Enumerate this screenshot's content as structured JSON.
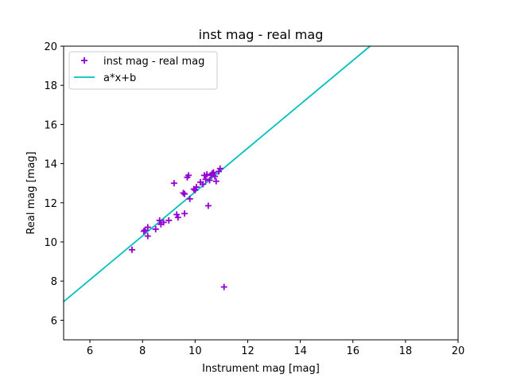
{
  "chart_data": {
    "type": "scatter",
    "title": "inst mag - real mag",
    "xlabel": "Instrument mag [mag]",
    "ylabel": "Real mag [mag]",
    "xlim": [
      5,
      20
    ],
    "ylim": [
      5,
      20
    ],
    "xticks": [
      6,
      8,
      10,
      12,
      14,
      16,
      18,
      20
    ],
    "yticks": [
      6,
      8,
      10,
      12,
      14,
      16,
      18,
      20
    ],
    "grid": false,
    "legend_position": "top-left",
    "series": [
      {
        "name": "inst mag - real mag",
        "kind": "scatter",
        "marker": "plus",
        "color": "#9400d3",
        "points": [
          [
            7.6,
            9.6
          ],
          [
            8.05,
            10.55
          ],
          [
            8.1,
            10.6
          ],
          [
            8.2,
            10.75
          ],
          [
            8.2,
            10.3
          ],
          [
            8.5,
            10.65
          ],
          [
            8.65,
            11.1
          ],
          [
            8.7,
            10.9
          ],
          [
            8.8,
            11.0
          ],
          [
            9.0,
            11.1
          ],
          [
            9.2,
            13.0
          ],
          [
            9.3,
            11.4
          ],
          [
            9.35,
            11.25
          ],
          [
            9.55,
            12.5
          ],
          [
            9.6,
            12.45
          ],
          [
            9.6,
            11.45
          ],
          [
            9.7,
            13.3
          ],
          [
            9.75,
            13.4
          ],
          [
            9.8,
            12.2
          ],
          [
            9.95,
            12.7
          ],
          [
            10.0,
            12.65
          ],
          [
            10.05,
            12.8
          ],
          [
            10.2,
            13.05
          ],
          [
            10.3,
            12.95
          ],
          [
            10.35,
            13.4
          ],
          [
            10.4,
            13.2
          ],
          [
            10.45,
            13.45
          ],
          [
            10.5,
            11.85
          ],
          [
            10.55,
            13.15
          ],
          [
            10.6,
            13.4
          ],
          [
            10.65,
            13.5
          ],
          [
            10.7,
            13.55
          ],
          [
            10.75,
            13.35
          ],
          [
            10.8,
            13.1
          ],
          [
            10.9,
            13.6
          ],
          [
            10.95,
            13.75
          ],
          [
            11.1,
            7.7
          ]
        ]
      },
      {
        "name": "a*x+b",
        "kind": "line",
        "color": "#00bfbf",
        "x": [
          5,
          16.65
        ],
        "y": [
          6.95,
          20
        ]
      }
    ]
  }
}
